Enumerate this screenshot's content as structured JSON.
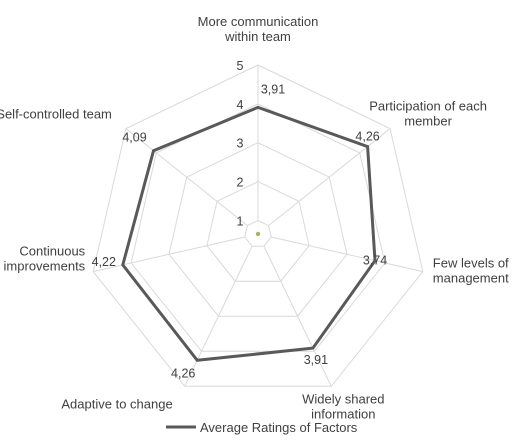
{
  "chart_data": {
    "type": "radar",
    "categories": [
      "More communication within team",
      "Participation of each member",
      "Few levels of management",
      "Widely shared information",
      "Adaptive to change",
      "Continuous improvements",
      "Self-controlled team"
    ],
    "category_lines": [
      [
        "More communication",
        "within team"
      ],
      [
        "Participation of each",
        "member"
      ],
      [
        "Few levels of",
        "management"
      ],
      [
        "Widely shared",
        "information"
      ],
      [
        "Adaptive to change"
      ],
      [
        "Continuous",
        "improvements"
      ],
      [
        "Self-controlled team"
      ]
    ],
    "series": [
      {
        "name": "Average Ratings of Factors",
        "values": [
          3.91,
          4.26,
          3.74,
          3.91,
          4.26,
          4.22,
          4.09
        ],
        "value_labels": [
          "3,91",
          "4,26",
          "3,74",
          "3,91",
          "4,26",
          "4,22",
          "4,09"
        ],
        "color": "#595959"
      }
    ],
    "rlim": [
      1,
      5
    ],
    "ticks": [
      "1",
      "2",
      "3",
      "4",
      "5"
    ],
    "grid": true,
    "grid_color": "#d9d9d9",
    "center_marker_color": "#9bbb59",
    "legend_position": "bottom"
  }
}
